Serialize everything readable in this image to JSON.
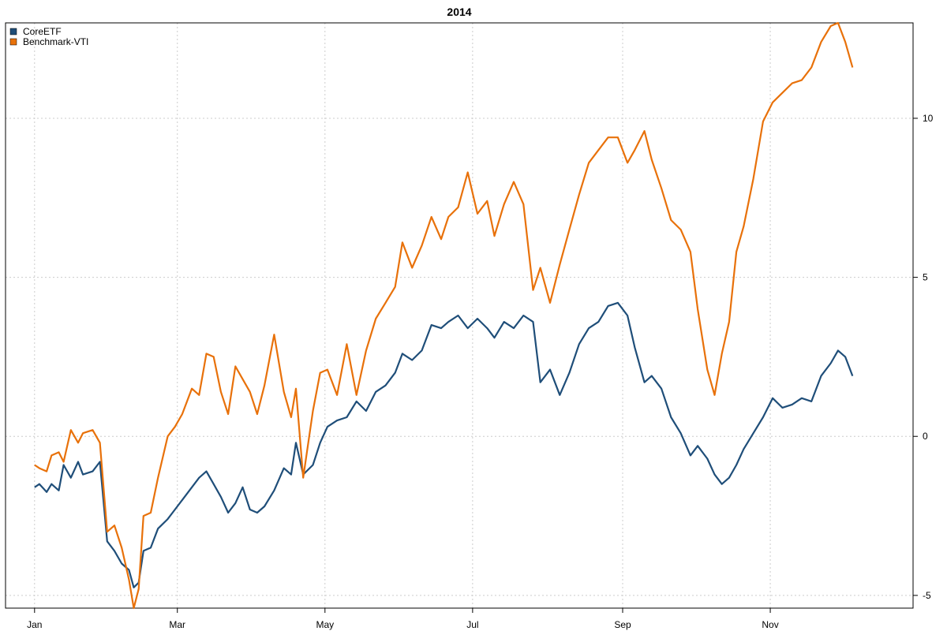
{
  "chart_data": {
    "type": "line",
    "title": "2014",
    "xlabel": "",
    "ylabel": "",
    "grid": true,
    "legend_position": "top-left",
    "x_ticks": [
      {
        "label": "Jan",
        "date": "2014-01-01"
      },
      {
        "label": "Mar",
        "date": "2014-03-01"
      },
      {
        "label": "May",
        "date": "2014-05-01"
      },
      {
        "label": "Jul",
        "date": "2014-07-01"
      },
      {
        "label": "Sep",
        "date": "2014-09-01"
      },
      {
        "label": "Nov",
        "date": "2014-11-01"
      }
    ],
    "xlim": [
      "2013-12-20",
      "2014-12-30"
    ],
    "y_ticks": [
      -5,
      0,
      5,
      10
    ],
    "ylim": [
      -5.4,
      13.0
    ],
    "y_axis_side": "right",
    "series": [
      {
        "name": "CoreETF",
        "color": "#1f4e79",
        "points": [
          [
            "2014-01-01",
            -1.6
          ],
          [
            "2014-01-03",
            -1.5
          ],
          [
            "2014-01-06",
            -1.75
          ],
          [
            "2014-01-08",
            -1.5
          ],
          [
            "2014-01-11",
            -1.7
          ],
          [
            "2014-01-13",
            -0.9
          ],
          [
            "2014-01-16",
            -1.3
          ],
          [
            "2014-01-19",
            -0.8
          ],
          [
            "2014-01-21",
            -1.2
          ],
          [
            "2014-01-25",
            -1.1
          ],
          [
            "2014-01-28",
            -0.8
          ],
          [
            "2014-01-31",
            -3.3
          ],
          [
            "2014-02-03",
            -3.6
          ],
          [
            "2014-02-06",
            -4.0
          ],
          [
            "2014-02-09",
            -4.2
          ],
          [
            "2014-02-11",
            -4.75
          ],
          [
            "2014-02-13",
            -4.6
          ],
          [
            "2014-02-15",
            -3.6
          ],
          [
            "2014-02-18",
            -3.5
          ],
          [
            "2014-02-21",
            -2.9
          ],
          [
            "2014-02-25",
            -2.6
          ],
          [
            "2014-02-28",
            -2.3
          ],
          [
            "2014-03-03",
            -2.0
          ],
          [
            "2014-03-07",
            -1.6
          ],
          [
            "2014-03-10",
            -1.3
          ],
          [
            "2014-03-13",
            -1.1
          ],
          [
            "2014-03-16",
            -1.5
          ],
          [
            "2014-03-19",
            -1.9
          ],
          [
            "2014-03-22",
            -2.4
          ],
          [
            "2014-03-25",
            -2.1
          ],
          [
            "2014-03-28",
            -1.6
          ],
          [
            "2014-03-31",
            -2.3
          ],
          [
            "2014-04-03",
            -2.4
          ],
          [
            "2014-04-06",
            -2.2
          ],
          [
            "2014-04-10",
            -1.7
          ],
          [
            "2014-04-14",
            -1.0
          ],
          [
            "2014-04-17",
            -1.2
          ],
          [
            "2014-04-19",
            -0.2
          ],
          [
            "2014-04-22",
            -1.2
          ],
          [
            "2014-04-26",
            -0.9
          ],
          [
            "2014-04-29",
            -0.2
          ],
          [
            "2014-05-02",
            0.3
          ],
          [
            "2014-05-06",
            0.5
          ],
          [
            "2014-05-10",
            0.6
          ],
          [
            "2014-05-14",
            1.1
          ],
          [
            "2014-05-18",
            0.8
          ],
          [
            "2014-05-22",
            1.4
          ],
          [
            "2014-05-26",
            1.6
          ],
          [
            "2014-05-30",
            2.0
          ],
          [
            "2014-06-02",
            2.6
          ],
          [
            "2014-06-06",
            2.4
          ],
          [
            "2014-06-10",
            2.7
          ],
          [
            "2014-06-14",
            3.5
          ],
          [
            "2014-06-18",
            3.4
          ],
          [
            "2014-06-21",
            3.6
          ],
          [
            "2014-06-25",
            3.8
          ],
          [
            "2014-06-29",
            3.4
          ],
          [
            "2014-07-03",
            3.7
          ],
          [
            "2014-07-07",
            3.4
          ],
          [
            "2014-07-10",
            3.1
          ],
          [
            "2014-07-14",
            3.6
          ],
          [
            "2014-07-18",
            3.4
          ],
          [
            "2014-07-22",
            3.8
          ],
          [
            "2014-07-26",
            3.6
          ],
          [
            "2014-07-29",
            1.7
          ],
          [
            "2014-08-02",
            2.1
          ],
          [
            "2014-08-06",
            1.3
          ],
          [
            "2014-08-10",
            2.0
          ],
          [
            "2014-08-14",
            2.9
          ],
          [
            "2014-08-18",
            3.4
          ],
          [
            "2014-08-22",
            3.6
          ],
          [
            "2014-08-26",
            4.1
          ],
          [
            "2014-08-30",
            4.2
          ],
          [
            "2014-09-03",
            3.8
          ],
          [
            "2014-09-06",
            2.8
          ],
          [
            "2014-09-10",
            1.7
          ],
          [
            "2014-09-13",
            1.9
          ],
          [
            "2014-09-17",
            1.5
          ],
          [
            "2014-09-21",
            0.6
          ],
          [
            "2014-09-25",
            0.1
          ],
          [
            "2014-09-29",
            -0.6
          ],
          [
            "2014-10-02",
            -0.3
          ],
          [
            "2014-10-06",
            -0.7
          ],
          [
            "2014-10-09",
            -1.2
          ],
          [
            "2014-10-12",
            -1.5
          ],
          [
            "2014-10-15",
            -1.3
          ],
          [
            "2014-10-18",
            -0.9
          ],
          [
            "2014-10-21",
            -0.4
          ],
          [
            "2014-10-25",
            0.1
          ],
          [
            "2014-10-29",
            0.6
          ],
          [
            "2014-11-02",
            1.2
          ],
          [
            "2014-11-06",
            0.9
          ],
          [
            "2014-11-10",
            1.0
          ],
          [
            "2014-11-14",
            1.2
          ],
          [
            "2014-11-18",
            1.1
          ],
          [
            "2014-11-22",
            1.9
          ],
          [
            "2014-11-26",
            2.3
          ],
          [
            "2014-11-29",
            2.7
          ],
          [
            "2014-12-02",
            2.5
          ],
          [
            "2014-12-05",
            1.9
          ]
        ]
      },
      {
        "name": "Benchmark-VTI",
        "color": "#e8710a",
        "points": [
          [
            "2014-01-01",
            -0.9
          ],
          [
            "2014-01-03",
            -1.0
          ],
          [
            "2014-01-06",
            -1.1
          ],
          [
            "2014-01-08",
            -0.6
          ],
          [
            "2014-01-11",
            -0.5
          ],
          [
            "2014-01-13",
            -0.8
          ],
          [
            "2014-01-16",
            0.2
          ],
          [
            "2014-01-19",
            -0.2
          ],
          [
            "2014-01-21",
            0.1
          ],
          [
            "2014-01-25",
            0.2
          ],
          [
            "2014-01-28",
            -0.2
          ],
          [
            "2014-01-31",
            -3.0
          ],
          [
            "2014-02-03",
            -2.8
          ],
          [
            "2014-02-06",
            -3.5
          ],
          [
            "2014-02-09",
            -4.5
          ],
          [
            "2014-02-11",
            -5.4
          ],
          [
            "2014-02-13",
            -4.8
          ],
          [
            "2014-02-15",
            -2.5
          ],
          [
            "2014-02-18",
            -2.4
          ],
          [
            "2014-02-21",
            -1.3
          ],
          [
            "2014-02-25",
            0.0
          ],
          [
            "2014-02-28",
            0.3
          ],
          [
            "2014-03-03",
            0.7
          ],
          [
            "2014-03-07",
            1.5
          ],
          [
            "2014-03-10",
            1.3
          ],
          [
            "2014-03-13",
            2.6
          ],
          [
            "2014-03-16",
            2.5
          ],
          [
            "2014-03-19",
            1.4
          ],
          [
            "2014-03-22",
            0.7
          ],
          [
            "2014-03-25",
            2.2
          ],
          [
            "2014-03-28",
            1.8
          ],
          [
            "2014-03-31",
            1.4
          ],
          [
            "2014-04-03",
            0.7
          ],
          [
            "2014-04-06",
            1.6
          ],
          [
            "2014-04-10",
            3.2
          ],
          [
            "2014-04-14",
            1.4
          ],
          [
            "2014-04-17",
            0.6
          ],
          [
            "2014-04-19",
            1.5
          ],
          [
            "2014-04-22",
            -1.3
          ],
          [
            "2014-04-26",
            0.8
          ],
          [
            "2014-04-29",
            2.0
          ],
          [
            "2014-05-02",
            2.1
          ],
          [
            "2014-05-06",
            1.3
          ],
          [
            "2014-05-10",
            2.9
          ],
          [
            "2014-05-14",
            1.3
          ],
          [
            "2014-05-18",
            2.7
          ],
          [
            "2014-05-22",
            3.7
          ],
          [
            "2014-05-26",
            4.2
          ],
          [
            "2014-05-30",
            4.7
          ],
          [
            "2014-06-02",
            6.1
          ],
          [
            "2014-06-06",
            5.3
          ],
          [
            "2014-06-10",
            6.0
          ],
          [
            "2014-06-14",
            6.9
          ],
          [
            "2014-06-18",
            6.2
          ],
          [
            "2014-06-21",
            6.9
          ],
          [
            "2014-06-25",
            7.2
          ],
          [
            "2014-06-29",
            8.3
          ],
          [
            "2014-07-03",
            7.0
          ],
          [
            "2014-07-07",
            7.4
          ],
          [
            "2014-07-10",
            6.3
          ],
          [
            "2014-07-14",
            7.3
          ],
          [
            "2014-07-18",
            8.0
          ],
          [
            "2014-07-22",
            7.3
          ],
          [
            "2014-07-26",
            4.6
          ],
          [
            "2014-07-29",
            5.3
          ],
          [
            "2014-08-02",
            4.2
          ],
          [
            "2014-08-06",
            5.4
          ],
          [
            "2014-08-10",
            6.5
          ],
          [
            "2014-08-14",
            7.6
          ],
          [
            "2014-08-18",
            8.6
          ],
          [
            "2014-08-22",
            9.0
          ],
          [
            "2014-08-26",
            9.4
          ],
          [
            "2014-08-30",
            9.4
          ],
          [
            "2014-09-03",
            8.6
          ],
          [
            "2014-09-06",
            9.0
          ],
          [
            "2014-09-10",
            9.6
          ],
          [
            "2014-09-13",
            8.7
          ],
          [
            "2014-09-17",
            7.8
          ],
          [
            "2014-09-21",
            6.8
          ],
          [
            "2014-09-25",
            6.5
          ],
          [
            "2014-09-29",
            5.8
          ],
          [
            "2014-10-02",
            4.0
          ],
          [
            "2014-10-06",
            2.1
          ],
          [
            "2014-10-09",
            1.3
          ],
          [
            "2014-10-12",
            2.6
          ],
          [
            "2014-10-15",
            3.6
          ],
          [
            "2014-10-18",
            5.8
          ],
          [
            "2014-10-21",
            6.6
          ],
          [
            "2014-10-25",
            8.1
          ],
          [
            "2014-10-29",
            9.9
          ],
          [
            "2014-11-02",
            10.5
          ],
          [
            "2014-11-06",
            10.8
          ],
          [
            "2014-11-10",
            11.1
          ],
          [
            "2014-11-14",
            11.2
          ],
          [
            "2014-11-18",
            11.6
          ],
          [
            "2014-11-22",
            12.4
          ],
          [
            "2014-11-26",
            12.9
          ],
          [
            "2014-11-29",
            13.0
          ],
          [
            "2014-12-02",
            12.4
          ],
          [
            "2014-12-05",
            11.6
          ]
        ]
      }
    ]
  }
}
